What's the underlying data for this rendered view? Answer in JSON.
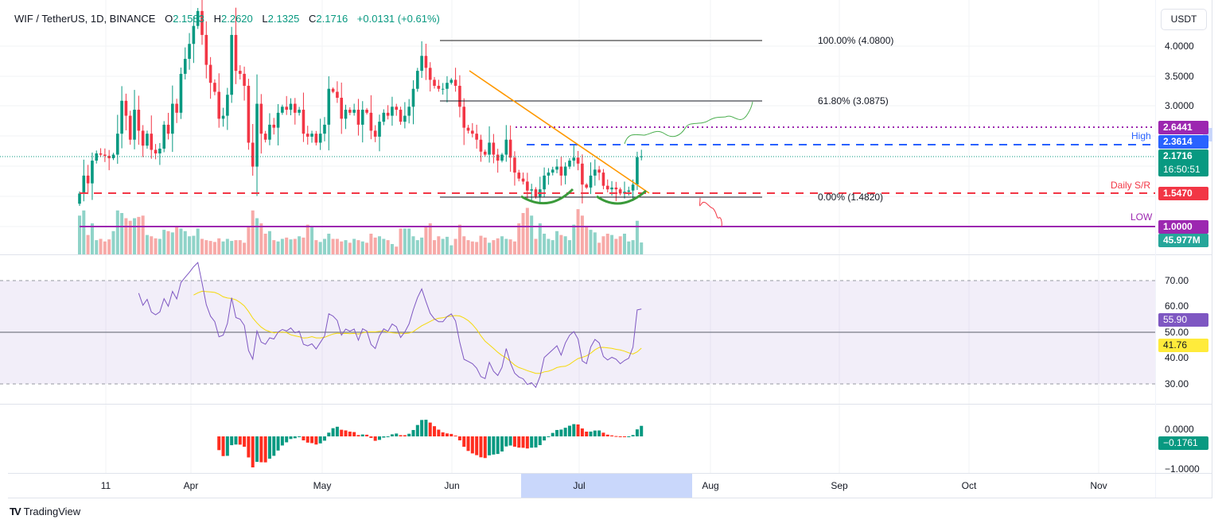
{
  "header": {
    "symbol": "WIF / TetherUS, 1D, BINANCE",
    "open_label": "O",
    "open": "2.1583",
    "high_label": "H",
    "high": "2.2620",
    "low_label": "L",
    "low": "2.1325",
    "close_label": "C",
    "close": "2.1716",
    "change": "+0.0131 (+0.61%)"
  },
  "currency": "USDT",
  "price_labels": {
    "level_2_6441": "2.6441",
    "high_level": "2.3614",
    "last_price": "2.1716",
    "countdown": "16:50:51",
    "daily_sr": "1.5470",
    "low_level": "1.0000",
    "volume": "45.977M",
    "rsi": "55.90",
    "rsi_ma": "41.76",
    "macd_hist": "−0.1761"
  },
  "annotations": {
    "high": "High",
    "daily_sr": "Daily S/R",
    "low": "LOW",
    "fib_100": "100.00% (4.0800)",
    "fib_618": "61.80% (3.0875)",
    "fib_0": "0.00% (1.4820)"
  },
  "brand": "TradingView",
  "colors": {
    "up": "#089981",
    "down": "#f23645",
    "rsi": "#7e57c2",
    "rsi_ma": "#f5d90a",
    "purple": "#9c27b0",
    "blue": "#2962ff",
    "trend": "#ff9800"
  },
  "chart_data": {
    "type": "candlestick",
    "title": "WIF / TetherUS, 1D, BINANCE",
    "price_axis": {
      "ticks": [
        "4.0000",
        "3.5000",
        "3.0000"
      ],
      "range": [
        0.6,
        4.8
      ]
    },
    "rsi_axis": {
      "ticks": [
        "70.00",
        "60.00",
        "50.00",
        "40.00",
        "30.00"
      ]
    },
    "macd_axis": {
      "ticks": [
        "0.0000",
        "−1.0000"
      ]
    },
    "time_axis": [
      "11",
      "Apr",
      "May",
      "Jun",
      "Jul",
      "Aug",
      "Sep",
      "Oct",
      "Nov"
    ],
    "highlighted_range": "Jul",
    "levels": {
      "fib_100": 4.08,
      "fib_618": 3.0875,
      "fib_0": 1.482,
      "resistance": 2.6441,
      "high": 2.3614,
      "daily_sr": 1.547,
      "low": 1.0,
      "last": 2.1716
    },
    "first_open": 1.38,
    "closes": [
      1.55,
      1.85,
      1.72,
      2.1,
      2.22,
      2.2,
      2.18,
      2.14,
      2.2,
      2.55,
      3.1,
      2.85,
      2.45,
      2.95,
      2.6,
      2.35,
      2.55,
      2.28,
      2.22,
      2.3,
      2.7,
      2.55,
      3.05,
      2.9,
      3.55,
      3.8,
      4.05,
      4.35,
      4.6,
      4.2,
      3.7,
      3.4,
      3.25,
      2.8,
      2.85,
      3.2,
      4.2,
      3.6,
      3.55,
      3.35,
      2.4,
      2.0,
      3.05,
      2.55,
      2.45,
      2.7,
      2.65,
      2.9,
      3.0,
      2.95,
      3.05,
      2.9,
      2.95,
      2.55,
      2.5,
      2.55,
      2.4,
      2.55,
      2.7,
      3.3,
      3.25,
      3.15,
      2.8,
      2.95,
      2.9,
      2.95,
      2.7,
      2.95,
      2.9,
      2.6,
      2.5,
      2.75,
      2.9,
      2.85,
      3.0,
      2.95,
      2.75,
      2.85,
      3.0,
      3.3,
      3.6,
      3.85,
      3.65,
      3.45,
      3.35,
      3.3,
      3.3,
      3.4,
      3.45,
      3.35,
      3.0,
      2.65,
      2.6,
      2.55,
      2.45,
      2.25,
      2.2,
      2.4,
      2.2,
      2.1,
      2.2,
      2.45,
      2.15,
      1.9,
      1.8,
      1.75,
      1.6,
      1.62,
      1.5,
      1.62,
      1.85,
      1.9,
      1.95,
      2.0,
      1.85,
      2.0,
      2.1,
      2.15,
      2.05,
      1.7,
      1.65,
      1.85,
      1.95,
      1.9,
      1.68,
      1.62,
      1.65,
      1.62,
      1.55,
      1.58,
      1.6,
      1.7,
      2.1583,
      2.1716
    ],
    "volumes_m": [
      150,
      170,
      75,
      120,
      55,
      60,
      50,
      58,
      90,
      170,
      160,
      140,
      130,
      140,
      145,
      150,
      75,
      70,
      62,
      60,
      95,
      90,
      85,
      110,
      100,
      90,
      70,
      72,
      100,
      60,
      55,
      52,
      48,
      62,
      50,
      60,
      52,
      55,
      55,
      45,
      110,
      170,
      140,
      120,
      80,
      90,
      55,
      50,
      60,
      65,
      58,
      60,
      70,
      65,
      115,
      110,
      55,
      48,
      60,
      80,
      60,
      60,
      50,
      55,
      45,
      60,
      55,
      50,
      45,
      80,
      65,
      70,
      60,
      55,
      40,
      30,
      100,
      100,
      100,
      70,
      55,
      65,
      110,
      120,
      55,
      70,
      60,
      68,
      35,
      60,
      115,
      70,
      55,
      50,
      48,
      72,
      65,
      45,
      55,
      62,
      70,
      60,
      58,
      50,
      120,
      160,
      180,
      150,
      60,
      120,
      80,
      60,
      55,
      90,
      75,
      70,
      55,
      115,
      175,
      150,
      105,
      95,
      85,
      45,
      70,
      80,
      75,
      60,
      70,
      80,
      50,
      55,
      130,
      46
    ]
  }
}
